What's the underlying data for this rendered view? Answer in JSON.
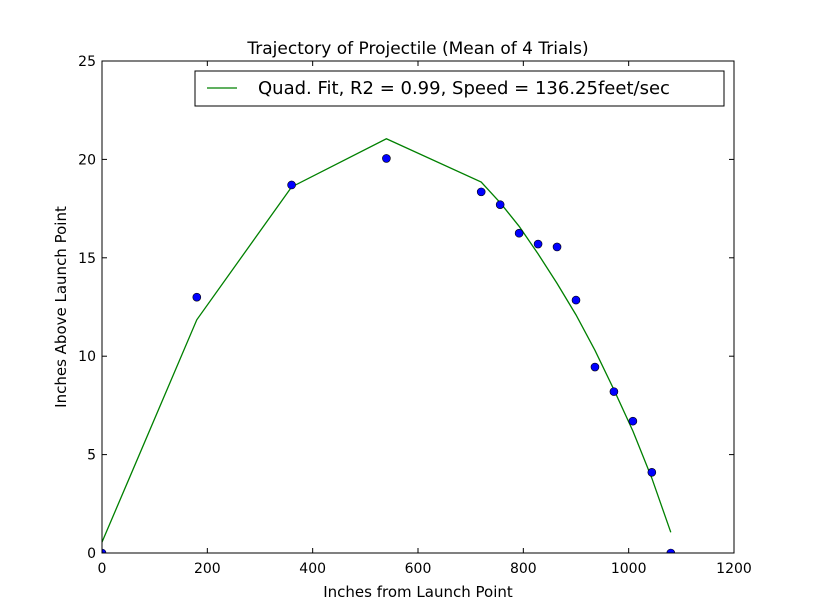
{
  "chart_data": {
    "type": "scatter",
    "title": "Trajectory of Projectile (Mean of 4 Trials)",
    "xlabel": "Inches from Launch Point",
    "ylabel": "Inches Above Launch Point",
    "xlim": [
      0,
      1200
    ],
    "ylim": [
      0,
      25
    ],
    "xticks": [
      "0",
      "200",
      "400",
      "600",
      "800",
      "1000",
      "1200"
    ],
    "yticks": [
      "0",
      "5",
      "10",
      "15",
      "20",
      "25"
    ],
    "grid": false,
    "legend_position": "top-right",
    "series": [
      {
        "type": "scatter",
        "color": "#0000ff",
        "x": [
          0,
          180,
          360,
          540,
          720,
          756,
          792,
          828,
          864,
          900,
          936,
          972,
          1008,
          1044,
          1080
        ],
        "y": [
          0.0,
          13.0,
          18.7,
          20.05,
          18.35,
          17.7,
          16.25,
          15.7,
          15.55,
          12.85,
          9.45,
          8.2,
          6.7,
          4.1,
          0.0
        ]
      },
      {
        "type": "line",
        "name": "Quad. Fit, R2 = 0.99, Speed = 136.25feet/sec",
        "color": "#008000",
        "x": [
          0,
          180,
          360,
          540,
          720,
          756,
          792,
          828,
          864,
          900,
          936,
          972,
          1008,
          1044,
          1080
        ],
        "y": [
          0.55,
          11.85,
          18.6,
          21.05,
          18.85,
          17.8,
          16.6,
          15.2,
          13.7,
          12.1,
          10.3,
          8.3,
          6.2,
          3.8,
          1.05
        ]
      }
    ]
  }
}
